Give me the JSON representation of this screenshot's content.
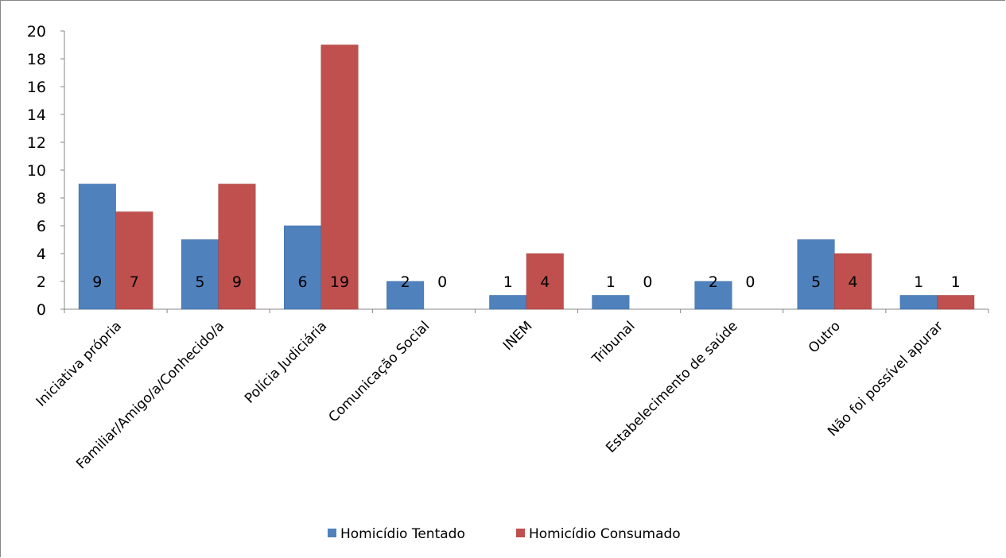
{
  "chart_data": {
    "type": "bar",
    "categories": [
      "Iniciativa própria",
      "Familiar/Amigo/a/Conhecido/a",
      "Polícia Judiciária",
      "Comunicação Social",
      "INEM",
      "Tribunal",
      "Estabelecimento de saúde",
      "Outro",
      "Não foi possível apurar"
    ],
    "series": [
      {
        "name": "Homicídio Tentado",
        "color": "#4f81bd",
        "values": [
          9,
          5,
          6,
          2,
          1,
          1,
          2,
          5,
          1
        ]
      },
      {
        "name": "Homicídio Consumado",
        "color": "#c0504d",
        "values": [
          7,
          9,
          19,
          0,
          4,
          0,
          0,
          4,
          1
        ]
      }
    ],
    "ylim": [
      0,
      20
    ],
    "yticks": [
      0,
      2,
      4,
      6,
      8,
      10,
      12,
      14,
      16,
      18,
      20
    ],
    "grid": false,
    "legend_position": "bottom",
    "data_labels": "inside-base"
  }
}
